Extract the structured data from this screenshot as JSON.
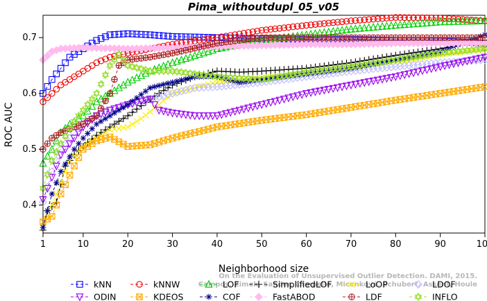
{
  "chart_data": {
    "type": "line",
    "title": "Pima_withoutdupl_05_v05",
    "xlabel": "Neighborhood size",
    "ylabel": "ROC AUC",
    "xlim": [
      1,
      100
    ],
    "ylim": [
      0.35,
      0.74
    ],
    "xticks": [
      1,
      10,
      20,
      30,
      40,
      50,
      60,
      70,
      80,
      90,
      100
    ],
    "yticks": [
      0.4,
      0.5,
      0.6,
      0.7
    ],
    "legend_placement": "bottom",
    "watermark": [
      "Campos, Zimek, Sander, Campello, Micenková, Schubert, Assent, Houle",
      "On the Evaluation of Unsupervised Outlier Detection. DAMI, 2015."
    ],
    "series": [
      {
        "name": "kNN",
        "color": "#0000ff",
        "marker": "square",
        "points": [
          [
            1,
            0.6
          ],
          [
            3,
            0.625
          ],
          [
            5,
            0.645
          ],
          [
            7,
            0.665
          ],
          [
            10,
            0.68
          ],
          [
            13,
            0.695
          ],
          [
            16,
            0.705
          ],
          [
            20,
            0.707
          ],
          [
            25,
            0.705
          ],
          [
            30,
            0.702
          ],
          [
            40,
            0.7
          ],
          [
            50,
            0.698
          ],
          [
            60,
            0.697
          ],
          [
            70,
            0.697
          ],
          [
            80,
            0.695
          ],
          [
            90,
            0.694
          ],
          [
            100,
            0.69
          ]
        ]
      },
      {
        "name": "kNNW",
        "color": "#ee0000",
        "marker": "circle",
        "points": [
          [
            1,
            0.585
          ],
          [
            3,
            0.6
          ],
          [
            5,
            0.615
          ],
          [
            8,
            0.63
          ],
          [
            10,
            0.64
          ],
          [
            13,
            0.655
          ],
          [
            16,
            0.665
          ],
          [
            20,
            0.672
          ],
          [
            25,
            0.68
          ],
          [
            30,
            0.688
          ],
          [
            40,
            0.7
          ],
          [
            50,
            0.713
          ],
          [
            60,
            0.722
          ],
          [
            70,
            0.73
          ],
          [
            80,
            0.736
          ],
          [
            90,
            0.735
          ],
          [
            100,
            0.73
          ]
        ]
      },
      {
        "name": "LOF",
        "color": "#00cc00",
        "marker": "triangle-up",
        "points": [
          [
            1,
            0.475
          ],
          [
            3,
            0.5
          ],
          [
            5,
            0.53
          ],
          [
            7,
            0.545
          ],
          [
            10,
            0.56
          ],
          [
            13,
            0.585
          ],
          [
            16,
            0.6
          ],
          [
            20,
            0.62
          ],
          [
            25,
            0.64
          ],
          [
            30,
            0.655
          ],
          [
            40,
            0.68
          ],
          [
            50,
            0.695
          ],
          [
            60,
            0.705
          ],
          [
            70,
            0.715
          ],
          [
            80,
            0.722
          ],
          [
            90,
            0.728
          ],
          [
            100,
            0.73
          ]
        ]
      },
      {
        "name": "SimplifiedLOF",
        "color": "#000000",
        "marker": "plus",
        "points": [
          [
            1,
            0.355
          ],
          [
            2,
            0.39
          ],
          [
            4,
            0.405
          ],
          [
            6,
            0.47
          ],
          [
            8,
            0.49
          ],
          [
            10,
            0.505
          ],
          [
            13,
            0.525
          ],
          [
            16,
            0.54
          ],
          [
            20,
            0.56
          ],
          [
            25,
            0.59
          ],
          [
            30,
            0.615
          ],
          [
            35,
            0.63
          ],
          [
            40,
            0.64
          ],
          [
            45,
            0.638
          ],
          [
            50,
            0.64
          ],
          [
            60,
            0.645
          ],
          [
            70,
            0.655
          ],
          [
            80,
            0.668
          ],
          [
            90,
            0.68
          ],
          [
            100,
            0.695
          ]
        ]
      },
      {
        "name": "LoOP",
        "color": "#ffee00",
        "marker": "x",
        "points": [
          [
            1,
            0.36
          ],
          [
            3,
            0.4
          ],
          [
            5,
            0.44
          ],
          [
            7,
            0.48
          ],
          [
            10,
            0.505
          ],
          [
            13,
            0.52
          ],
          [
            16,
            0.535
          ],
          [
            20,
            0.54
          ],
          [
            23,
            0.555
          ],
          [
            27,
            0.58
          ],
          [
            30,
            0.6
          ],
          [
            40,
            0.62
          ],
          [
            50,
            0.628
          ],
          [
            60,
            0.635
          ],
          [
            70,
            0.645
          ],
          [
            80,
            0.655
          ],
          [
            90,
            0.67
          ],
          [
            100,
            0.68
          ]
        ]
      },
      {
        "name": "LDOF",
        "color": "#bbbbff",
        "marker": "diamond",
        "points": [
          [
            1,
            0.405
          ],
          [
            3,
            0.46
          ],
          [
            5,
            0.5
          ],
          [
            8,
            0.53
          ],
          [
            10,
            0.545
          ],
          [
            13,
            0.56
          ],
          [
            16,
            0.57
          ],
          [
            20,
            0.58
          ],
          [
            25,
            0.59
          ],
          [
            30,
            0.6
          ],
          [
            35,
            0.61
          ],
          [
            40,
            0.612
          ],
          [
            50,
            0.62
          ],
          [
            60,
            0.63
          ],
          [
            70,
            0.64
          ],
          [
            80,
            0.648
          ],
          [
            90,
            0.655
          ],
          [
            100,
            0.66
          ]
        ]
      },
      {
        "name": "ODIN",
        "color": "#9900ee",
        "marker": "triangle-down",
        "points": [
          [
            1,
            0.41
          ],
          [
            3,
            0.45
          ],
          [
            5,
            0.49
          ],
          [
            8,
            0.52
          ],
          [
            10,
            0.54
          ],
          [
            13,
            0.56
          ],
          [
            16,
            0.57
          ],
          [
            20,
            0.58
          ],
          [
            25,
            0.59
          ],
          [
            27,
            0.57
          ],
          [
            30,
            0.565
          ],
          [
            35,
            0.56
          ],
          [
            40,
            0.56
          ],
          [
            50,
            0.58
          ],
          [
            60,
            0.6
          ],
          [
            70,
            0.615
          ],
          [
            80,
            0.63
          ],
          [
            90,
            0.648
          ],
          [
            100,
            0.665
          ]
        ]
      },
      {
        "name": "KDEOS",
        "color": "#ffaa00",
        "marker": "square-x",
        "points": [
          [
            1,
            0.37
          ],
          [
            3,
            0.38
          ],
          [
            5,
            0.42
          ],
          [
            8,
            0.47
          ],
          [
            10,
            0.5
          ],
          [
            13,
            0.515
          ],
          [
            16,
            0.522
          ],
          [
            20,
            0.505
          ],
          [
            25,
            0.508
          ],
          [
            30,
            0.52
          ],
          [
            35,
            0.53
          ],
          [
            40,
            0.54
          ],
          [
            50,
            0.552
          ],
          [
            60,
            0.562
          ],
          [
            70,
            0.575
          ],
          [
            80,
            0.588
          ],
          [
            90,
            0.6
          ],
          [
            100,
            0.612
          ]
        ]
      },
      {
        "name": "COF",
        "color": "#000088",
        "marker": "asterisk",
        "points": [
          [
            1,
            0.36
          ],
          [
            3,
            0.42
          ],
          [
            5,
            0.46
          ],
          [
            8,
            0.5
          ],
          [
            10,
            0.52
          ],
          [
            13,
            0.545
          ],
          [
            16,
            0.56
          ],
          [
            20,
            0.58
          ],
          [
            25,
            0.61
          ],
          [
            30,
            0.62
          ],
          [
            35,
            0.63
          ],
          [
            40,
            0.63
          ],
          [
            45,
            0.62
          ],
          [
            50,
            0.625
          ],
          [
            60,
            0.635
          ],
          [
            70,
            0.645
          ],
          [
            80,
            0.66
          ],
          [
            90,
            0.675
          ],
          [
            100,
            0.705
          ]
        ]
      },
      {
        "name": "FastABOD",
        "color": "#ffbbee",
        "marker": "diamond-filled",
        "points": [
          [
            1,
            0.66
          ],
          [
            3,
            0.675
          ],
          [
            5,
            0.68
          ],
          [
            10,
            0.682
          ],
          [
            20,
            0.68
          ],
          [
            30,
            0.682
          ],
          [
            40,
            0.684
          ],
          [
            50,
            0.686
          ],
          [
            60,
            0.688
          ],
          [
            70,
            0.688
          ],
          [
            80,
            0.69
          ],
          [
            90,
            0.69
          ],
          [
            100,
            0.69
          ]
        ]
      },
      {
        "name": "LDF",
        "color": "#aa2222",
        "marker": "circle-plus",
        "points": [
          [
            1,
            0.5
          ],
          [
            3,
            0.52
          ],
          [
            5,
            0.53
          ],
          [
            8,
            0.54
          ],
          [
            10,
            0.545
          ],
          [
            13,
            0.56
          ],
          [
            16,
            0.6
          ],
          [
            18,
            0.65
          ],
          [
            20,
            0.66
          ],
          [
            25,
            0.665
          ],
          [
            30,
            0.672
          ],
          [
            40,
            0.69
          ],
          [
            50,
            0.7
          ],
          [
            60,
            0.7
          ],
          [
            70,
            0.7
          ],
          [
            80,
            0.7
          ],
          [
            90,
            0.7
          ],
          [
            100,
            0.7
          ]
        ]
      },
      {
        "name": "INFLO",
        "color": "#99dd33",
        "marker": "hexagram",
        "points": [
          [
            1,
            0.43
          ],
          [
            3,
            0.48
          ],
          [
            5,
            0.51
          ],
          [
            8,
            0.55
          ],
          [
            10,
            0.57
          ],
          [
            13,
            0.6
          ],
          [
            16,
            0.65
          ],
          [
            18,
            0.67
          ],
          [
            20,
            0.65
          ],
          [
            25,
            0.64
          ],
          [
            30,
            0.64
          ],
          [
            40,
            0.63
          ],
          [
            50,
            0.625
          ],
          [
            60,
            0.638
          ],
          [
            70,
            0.648
          ],
          [
            80,
            0.66
          ],
          [
            90,
            0.672
          ],
          [
            100,
            0.68
          ]
        ]
      }
    ]
  }
}
